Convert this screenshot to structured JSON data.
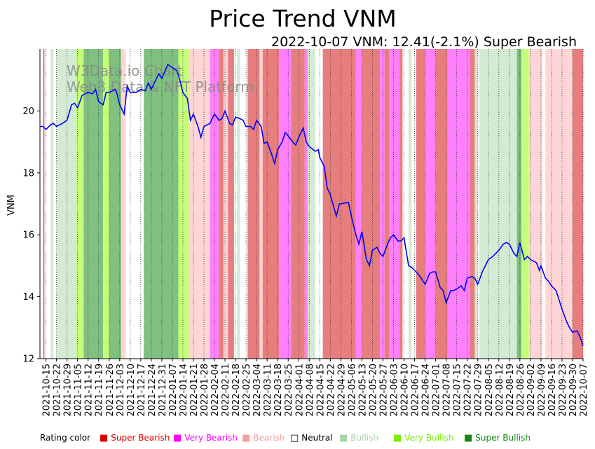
{
  "title": "Price Trend VNM",
  "chart_data": {
    "type": "line",
    "subtitle": "2022-10-07 VNM: 12.41(-2.1%) Super Bearish",
    "watermark_lines": [
      "W3Data.io Chart",
      "Web3 Data & NFT Platform"
    ],
    "ylabel": "VNM",
    "xlabel": "",
    "xlim": [
      "2021-10-11",
      "2022-10-07"
    ],
    "ylim": [
      12,
      22
    ],
    "yticks": [
      12,
      14,
      16,
      18,
      20
    ],
    "xticks": [
      "2021-10-15",
      "2021-10-22",
      "2021-10-29",
      "2021-11-05",
      "2021-11-12",
      "2021-11-19",
      "2021-11-26",
      "2021-12-03",
      "2021-12-10",
      "2021-12-17",
      "2021-12-24",
      "2021-12-31",
      "2022-01-07",
      "2022-01-14",
      "2022-01-21",
      "2022-01-28",
      "2022-02-04",
      "2022-02-11",
      "2022-02-18",
      "2022-02-25",
      "2022-03-04",
      "2022-03-11",
      "2022-03-18",
      "2022-03-25",
      "2022-04-01",
      "2022-04-08",
      "2022-04-15",
      "2022-04-22",
      "2022-04-29",
      "2022-05-06",
      "2022-05-13",
      "2022-05-20",
      "2022-05-27",
      "2022-06-03",
      "2022-06-10",
      "2022-06-17",
      "2022-06-24",
      "2022-07-01",
      "2022-07-08",
      "2022-07-15",
      "2022-07-22",
      "2022-07-29",
      "2022-08-05",
      "2022-08-12",
      "2022-08-19",
      "2022-08-26",
      "2022-09-02",
      "2022-09-09",
      "2022-09-16",
      "2022-09-23",
      "2022-09-30",
      "2022-10-07"
    ],
    "series": [
      {
        "name": "VNM",
        "color": "#0000ff",
        "points": [
          [
            "2021-10-11",
            19.5
          ],
          [
            "2021-10-13",
            19.5
          ],
          [
            "2021-10-15",
            19.4
          ],
          [
            "2021-10-18",
            19.55
          ],
          [
            "2021-10-20",
            19.6
          ],
          [
            "2021-10-22",
            19.5
          ],
          [
            "2021-10-26",
            19.6
          ],
          [
            "2021-10-29",
            19.7
          ],
          [
            "2021-11-01",
            20.2
          ],
          [
            "2021-11-03",
            20.25
          ],
          [
            "2021-11-05",
            20.1
          ],
          [
            "2021-11-08",
            20.5
          ],
          [
            "2021-11-10",
            20.55
          ],
          [
            "2021-11-12",
            20.6
          ],
          [
            "2021-11-15",
            20.55
          ],
          [
            "2021-11-17",
            20.7
          ],
          [
            "2021-11-19",
            20.3
          ],
          [
            "2021-11-22",
            20.2
          ],
          [
            "2021-11-24",
            20.6
          ],
          [
            "2021-11-26",
            20.6
          ],
          [
            "2021-11-30",
            20.7
          ],
          [
            "2021-12-01",
            20.6
          ],
          [
            "2021-12-03",
            20.2
          ],
          [
            "2021-12-06",
            19.9
          ],
          [
            "2021-12-08",
            20.8
          ],
          [
            "2021-12-10",
            20.6
          ],
          [
            "2021-12-14",
            20.6
          ],
          [
            "2021-12-17",
            20.7
          ],
          [
            "2021-12-20",
            20.65
          ],
          [
            "2021-12-22",
            20.9
          ],
          [
            "2021-12-24",
            20.7
          ],
          [
            "2021-12-27",
            21.0
          ],
          [
            "2021-12-29",
            21.2
          ],
          [
            "2021-12-31",
            21.05
          ],
          [
            "2022-01-04",
            21.5
          ],
          [
            "2022-01-07",
            21.4
          ],
          [
            "2022-01-10",
            21.3
          ],
          [
            "2022-01-12",
            21.0
          ],
          [
            "2022-01-14",
            20.6
          ],
          [
            "2022-01-17",
            20.4
          ],
          [
            "2022-01-19",
            19.7
          ],
          [
            "2022-01-21",
            19.9
          ],
          [
            "2022-01-24",
            19.5
          ],
          [
            "2022-01-26",
            19.15
          ],
          [
            "2022-01-28",
            19.5
          ],
          [
            "2022-02-01",
            19.6
          ],
          [
            "2022-02-04",
            19.9
          ],
          [
            "2022-02-07",
            19.7
          ],
          [
            "2022-02-09",
            19.75
          ],
          [
            "2022-02-11",
            20.0
          ],
          [
            "2022-02-14",
            19.6
          ],
          [
            "2022-02-16",
            19.55
          ],
          [
            "2022-02-18",
            19.8
          ],
          [
            "2022-02-21",
            19.75
          ],
          [
            "2022-02-23",
            19.7
          ],
          [
            "2022-02-25",
            19.5
          ],
          [
            "2022-02-28",
            19.5
          ],
          [
            "2022-03-02",
            19.4
          ],
          [
            "2022-03-04",
            19.7
          ],
          [
            "2022-03-07",
            19.5
          ],
          [
            "2022-03-09",
            18.95
          ],
          [
            "2022-03-11",
            19.0
          ],
          [
            "2022-03-14",
            18.6
          ],
          [
            "2022-03-16",
            18.3
          ],
          [
            "2022-03-18",
            18.75
          ],
          [
            "2022-03-21",
            19.0
          ],
          [
            "2022-03-23",
            19.3
          ],
          [
            "2022-03-25",
            19.2
          ],
          [
            "2022-03-28",
            19.0
          ],
          [
            "2022-03-30",
            18.9
          ],
          [
            "2022-04-01",
            19.15
          ],
          [
            "2022-04-04",
            19.45
          ],
          [
            "2022-04-06",
            19.0
          ],
          [
            "2022-04-08",
            18.85
          ],
          [
            "2022-04-12",
            18.7
          ],
          [
            "2022-04-14",
            18.75
          ],
          [
            "2022-04-15",
            18.5
          ],
          [
            "2022-04-18",
            18.2
          ],
          [
            "2022-04-20",
            17.5
          ],
          [
            "2022-04-22",
            17.3
          ],
          [
            "2022-04-26",
            16.6
          ],
          [
            "2022-04-28",
            17.0
          ],
          [
            "2022-04-29",
            17.0
          ],
          [
            "2022-05-04",
            17.05
          ],
          [
            "2022-05-06",
            16.6
          ],
          [
            "2022-05-09",
            16.0
          ],
          [
            "2022-05-11",
            15.7
          ],
          [
            "2022-05-13",
            16.1
          ],
          [
            "2022-05-16",
            15.2
          ],
          [
            "2022-05-18",
            15.0
          ],
          [
            "2022-05-20",
            15.5
          ],
          [
            "2022-05-23",
            15.6
          ],
          [
            "2022-05-25",
            15.4
          ],
          [
            "2022-05-27",
            15.3
          ],
          [
            "2022-05-30",
            15.7
          ],
          [
            "2022-06-01",
            15.9
          ],
          [
            "2022-06-03",
            16.0
          ],
          [
            "2022-06-06",
            15.8
          ],
          [
            "2022-06-08",
            15.8
          ],
          [
            "2022-06-10",
            15.9
          ],
          [
            "2022-06-13",
            15.0
          ],
          [
            "2022-06-15",
            14.95
          ],
          [
            "2022-06-17",
            14.85
          ],
          [
            "2022-06-20",
            14.7
          ],
          [
            "2022-06-22",
            14.55
          ],
          [
            "2022-06-24",
            14.4
          ],
          [
            "2022-06-27",
            14.75
          ],
          [
            "2022-06-29",
            14.8
          ],
          [
            "2022-07-01",
            14.8
          ],
          [
            "2022-07-04",
            14.3
          ],
          [
            "2022-07-06",
            14.2
          ],
          [
            "2022-07-08",
            13.8
          ],
          [
            "2022-07-11",
            14.2
          ],
          [
            "2022-07-13",
            14.2
          ],
          [
            "2022-07-15",
            14.25
          ],
          [
            "2022-07-18",
            14.35
          ],
          [
            "2022-07-20",
            14.2
          ],
          [
            "2022-07-22",
            14.6
          ],
          [
            "2022-07-25",
            14.65
          ],
          [
            "2022-07-27",
            14.6
          ],
          [
            "2022-07-29",
            14.4
          ],
          [
            "2022-08-01",
            14.8
          ],
          [
            "2022-08-03",
            15.0
          ],
          [
            "2022-08-05",
            15.2
          ],
          [
            "2022-08-08",
            15.3
          ],
          [
            "2022-08-10",
            15.4
          ],
          [
            "2022-08-12",
            15.5
          ],
          [
            "2022-08-15",
            15.7
          ],
          [
            "2022-08-17",
            15.75
          ],
          [
            "2022-08-19",
            15.7
          ],
          [
            "2022-08-22",
            15.4
          ],
          [
            "2022-08-24",
            15.3
          ],
          [
            "2022-08-26",
            15.75
          ],
          [
            "2022-08-29",
            15.2
          ],
          [
            "2022-08-31",
            15.3
          ],
          [
            "2022-09-02",
            15.2
          ],
          [
            "2022-09-06",
            15.1
          ],
          [
            "2022-09-08",
            14.85
          ],
          [
            "2022-09-09",
            15.0
          ],
          [
            "2022-09-12",
            14.6
          ],
          [
            "2022-09-14",
            14.5
          ],
          [
            "2022-09-16",
            14.35
          ],
          [
            "2022-09-19",
            14.2
          ],
          [
            "2022-09-21",
            13.9
          ],
          [
            "2022-09-23",
            13.6
          ],
          [
            "2022-09-26",
            13.2
          ],
          [
            "2022-09-28",
            13.0
          ],
          [
            "2022-09-30",
            12.85
          ],
          [
            "2022-10-03",
            12.9
          ],
          [
            "2022-10-05",
            12.7
          ],
          [
            "2022-10-07",
            12.41
          ]
        ]
      }
    ],
    "rating_colors": {
      "super_bearish": "#e67e7e",
      "very_bearish": "#ff80ff",
      "bearish": "#ffd5d5",
      "neutral": "#ffffff",
      "bullish": "#d3ead3",
      "very_bullish": "#c5ff7a",
      "super_bullish": "#80c080"
    },
    "rating_bands": [
      [
        "2021-10-13",
        "2021-10-14",
        "super_bearish"
      ],
      [
        "2021-10-18",
        "2021-10-20",
        "bullish"
      ],
      [
        "2021-10-22",
        "2021-11-04",
        "bullish"
      ],
      [
        "2021-11-04",
        "2021-11-09",
        "very_bullish"
      ],
      [
        "2021-11-09",
        "2021-11-22",
        "super_bullish"
      ],
      [
        "2021-11-22",
        "2021-11-26",
        "very_bullish"
      ],
      [
        "2021-11-26",
        "2021-12-04",
        "super_bullish"
      ],
      [
        "2021-12-04",
        "2021-12-07",
        "bearish"
      ],
      [
        "2021-12-19",
        "2022-01-11",
        "super_bullish"
      ],
      [
        "2022-01-11",
        "2022-01-18",
        "very_bullish"
      ],
      [
        "2022-01-18",
        "2022-01-27",
        "bearish"
      ],
      [
        "2022-01-27",
        "2022-02-01",
        "bearish"
      ],
      [
        "2022-02-01",
        "2022-02-07",
        "very_bearish"
      ],
      [
        "2022-02-07",
        "2022-02-10",
        "super_bearish"
      ],
      [
        "2022-02-10",
        "2022-02-13",
        "bearish"
      ],
      [
        "2022-02-13",
        "2022-02-17",
        "super_bearish"
      ],
      [
        "2022-02-19",
        "2022-02-21",
        "bullish"
      ],
      [
        "2022-02-26",
        "2022-03-06",
        "super_bearish"
      ],
      [
        "2022-03-06",
        "2022-03-08",
        "bearish"
      ],
      [
        "2022-03-08",
        "2022-03-19",
        "super_bearish"
      ],
      [
        "2022-03-19",
        "2022-03-27",
        "very_bearish"
      ],
      [
        "2022-03-27",
        "2022-04-05",
        "super_bearish"
      ],
      [
        "2022-04-05",
        "2022-04-07",
        "very_bearish"
      ],
      [
        "2022-04-07",
        "2022-04-12",
        "bullish"
      ],
      [
        "2022-04-17",
        "2022-05-09",
        "super_bearish"
      ],
      [
        "2022-05-09",
        "2022-05-13",
        "very_bearish"
      ],
      [
        "2022-05-13",
        "2022-05-25",
        "super_bearish"
      ],
      [
        "2022-05-25",
        "2022-05-28",
        "very_bearish"
      ],
      [
        "2022-05-28",
        "2022-05-31",
        "super_bearish"
      ],
      [
        "2022-05-31",
        "2022-06-07",
        "very_bearish"
      ],
      [
        "2022-06-07",
        "2022-06-09",
        "super_bearish"
      ],
      [
        "2022-06-13",
        "2022-06-15",
        "bullish"
      ],
      [
        "2022-06-18",
        "2022-06-24",
        "super_bearish"
      ],
      [
        "2022-06-24",
        "2022-07-01",
        "very_bearish"
      ],
      [
        "2022-07-01",
        "2022-07-09",
        "super_bearish"
      ],
      [
        "2022-07-09",
        "2022-07-24",
        "very_bearish"
      ],
      [
        "2022-07-24",
        "2022-07-27",
        "super_bearish"
      ],
      [
        "2022-07-27",
        "2022-07-29",
        "bullish"
      ],
      [
        "2022-07-30",
        "2022-08-24",
        "bullish"
      ],
      [
        "2022-08-24",
        "2022-08-27",
        "super_bullish"
      ],
      [
        "2022-08-27",
        "2022-09-01",
        "very_bullish"
      ],
      [
        "2022-09-01",
        "2022-09-10",
        "bearish"
      ],
      [
        "2022-09-12",
        "2022-09-30",
        "bearish"
      ],
      [
        "2022-09-30",
        "2022-10-08",
        "super_bearish"
      ]
    ]
  },
  "legend": {
    "title": "Rating color",
    "items": [
      {
        "label": "Super Bearish",
        "color": "#dd0000"
      },
      {
        "label": "Very Bearish",
        "color": "#ff00ff"
      },
      {
        "label": "Bearish",
        "color": "#f4a0a0"
      },
      {
        "label": "Neutral",
        "color": "#000000"
      },
      {
        "label": "Bullish",
        "color": "#a8d5a8"
      },
      {
        "label": "Very Bullish",
        "color": "#77ee00"
      },
      {
        "label": "Super Bullish",
        "color": "#118811"
      }
    ]
  }
}
